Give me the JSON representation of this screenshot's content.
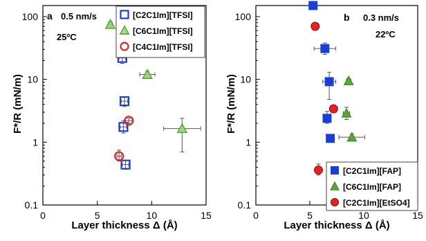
{
  "chart_data": [
    {
      "type": "scatter",
      "panel_label": "a",
      "annotations": [
        "0.5 nm/s",
        "25ºC"
      ],
      "xlabel": "Layer thickness Δ (Å)",
      "ylabel": "F*/R (mN/m)",
      "xlim": [
        0,
        15
      ],
      "ylim": [
        0.1,
        150
      ],
      "y_scale": "log",
      "x_ticks": [
        "0",
        "5",
        "10",
        "15"
      ],
      "y_ticks": [
        "0.1",
        "1",
        "10",
        "100"
      ],
      "grid": false,
      "legend_position": "top-right",
      "series": [
        {
          "name": "[C2C1Im][TFSI]",
          "marker": "open-square",
          "color": "#1a3fd6",
          "points": [
            {
              "x": 7.3,
              "y": 22,
              "xerr": 0.3,
              "yerr_low": 18,
              "yerr_high": 26
            },
            {
              "x": 7.5,
              "y": 4.5,
              "xerr": 0.3,
              "yerr_low": 3.7,
              "yerr_high": 5.3
            },
            {
              "x": 7.4,
              "y": 1.75,
              "xerr": 0.3,
              "yerr_low": 1.4,
              "yerr_high": 2.2
            },
            {
              "x": 7.6,
              "y": 0.44,
              "xerr": 0.3,
              "yerr_low": 0.37,
              "yerr_high": 0.52
            }
          ]
        },
        {
          "name": "[C6C1Im][TFSI]",
          "marker": "open-triangle",
          "color": "#5aa832",
          "points": [
            {
              "x": 6.2,
              "y": 75,
              "xerr": 0.2,
              "yerr_low": 68,
              "yerr_high": 83
            },
            {
              "x": 9.6,
              "y": 12,
              "xerr": 0.7,
              "yerr_low": 10.5,
              "yerr_high": 13.5
            },
            {
              "x": 12.8,
              "y": 1.65,
              "xerr": 1.7,
              "yerr_low": 0.7,
              "yerr_high": 2.4
            }
          ]
        },
        {
          "name": "[C4C1Im][TFSI]",
          "marker": "open-circle",
          "color": "#e52222",
          "points": [
            {
              "x": 7.9,
              "y": 2.2,
              "xerr": 0.3,
              "yerr_low": 2.0,
              "yerr_high": 2.4
            },
            {
              "x": 7.0,
              "y": 0.6,
              "xerr": 0.2,
              "yerr_low": 0.5,
              "yerr_high": 0.75
            }
          ]
        }
      ]
    },
    {
      "type": "scatter",
      "panel_label": "b",
      "annotations": [
        "0.3 nm/s",
        "22ºC"
      ],
      "xlabel": "Layer thickness Δ (Å)",
      "ylabel": "F*/R (mN/m)",
      "xlim": [
        0,
        15
      ],
      "ylim": [
        0.1,
        150
      ],
      "y_scale": "log",
      "x_ticks": [
        "0",
        "5",
        "10",
        "15"
      ],
      "y_ticks": [
        "0.1",
        "1",
        "10",
        "100"
      ],
      "grid": false,
      "legend_position": "bottom-right",
      "series": [
        {
          "name": "[C2C1Im][FAP]",
          "marker": "filled-square",
          "color": "#1a3fd6",
          "points": [
            {
              "x": 5.3,
              "y": 150,
              "xerr": 0.2,
              "yerr_low": 140,
              "yerr_high": 160
            },
            {
              "x": 6.4,
              "y": 31,
              "xerr": 1.0,
              "yerr_low": 25,
              "yerr_high": 38
            },
            {
              "x": 6.8,
              "y": 9.2,
              "xerr": 0.6,
              "yerr_low": 4.8,
              "yerr_high": 13
            },
            {
              "x": 6.6,
              "y": 2.4,
              "xerr": 0.3,
              "yerr_low": 2.0,
              "yerr_high": 3.1
            },
            {
              "x": 6.9,
              "y": 1.15,
              "xerr": 0.2,
              "yerr_low": 1.05,
              "yerr_high": 1.25
            }
          ]
        },
        {
          "name": "[C6C1Im][FAP]",
          "marker": "filled-triangle",
          "color": "#5aa832",
          "points": [
            {
              "x": 8.6,
              "y": 9.5,
              "xerr": 0.2,
              "yerr_low": 8.8,
              "yerr_high": 10.3
            },
            {
              "x": 8.4,
              "y": 2.9,
              "xerr": 0.3,
              "yerr_low": 2.3,
              "yerr_high": 3.6
            },
            {
              "x": 8.9,
              "y": 1.2,
              "xerr": 1.2,
              "yerr_low": 1.05,
              "yerr_high": 1.35
            }
          ]
        },
        {
          "name": "[C2C1Im][EtSO4]",
          "marker": "filled-circle",
          "color": "#e52222",
          "points": [
            {
              "x": 5.5,
              "y": 70,
              "xerr": 0.3,
              "yerr_low": 65,
              "yerr_high": 76
            },
            {
              "x": 7.2,
              "y": 3.4,
              "xerr": 0.3,
              "yerr_low": 3.1,
              "yerr_high": 3.7
            },
            {
              "x": 5.8,
              "y": 0.36,
              "xerr": 0.2,
              "yerr_low": 0.3,
              "yerr_high": 0.45
            }
          ]
        }
      ]
    }
  ]
}
